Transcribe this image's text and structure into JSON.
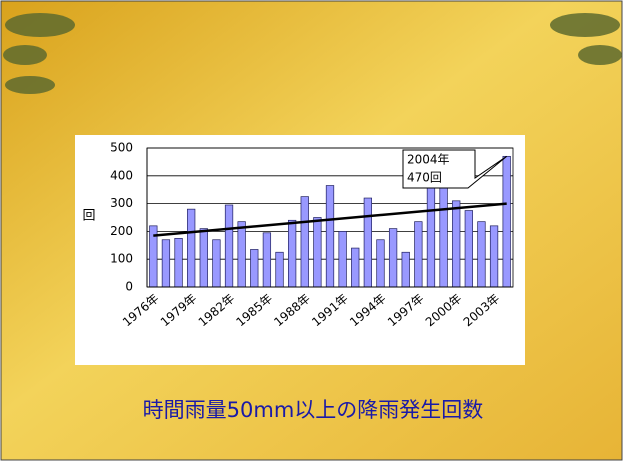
{
  "chart_data": {
    "type": "bar",
    "title": "時間雨量50mm以上の降雨発生回数",
    "y_label": "回",
    "categories": [
      "1976年",
      null,
      null,
      "1979年",
      null,
      null,
      "1982年",
      null,
      null,
      "1985年",
      null,
      null,
      "1988年",
      null,
      null,
      "1991年",
      null,
      null,
      "1994年",
      null,
      null,
      "1997年",
      null,
      null,
      "2000年",
      null,
      null,
      "2003年",
      null
    ],
    "values": [
      220,
      170,
      175,
      280,
      210,
      170,
      295,
      235,
      135,
      195,
      125,
      240,
      325,
      250,
      365,
      200,
      140,
      320,
      170,
      210,
      125,
      235,
      420,
      365,
      310,
      275,
      235,
      220,
      470
    ],
    "color": "#9999ff",
    "ylim": [
      0,
      500
    ],
    "yticks": [
      0,
      100,
      200,
      300,
      400,
      500
    ],
    "grid": true,
    "trendline": {
      "color": "#000000",
      "values": [
        185,
        300
      ]
    },
    "annotation": {
      "lines": [
        "2004年",
        "470回"
      ]
    }
  }
}
